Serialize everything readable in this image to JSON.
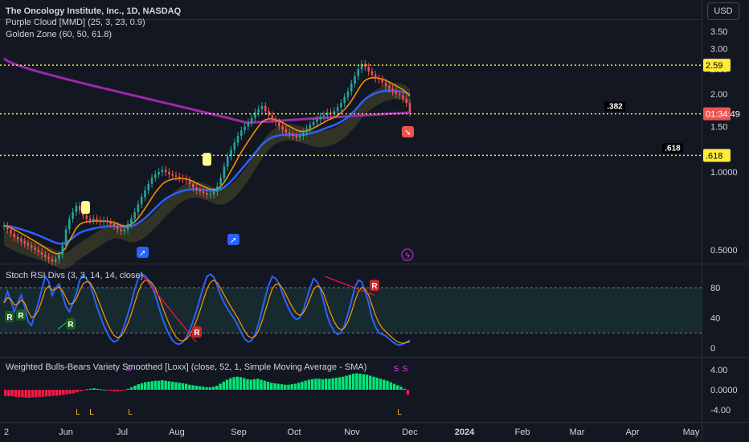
{
  "header": {
    "title": "The Oncology Institute, Inc., 1D, NASDAQ",
    "indicator_1": "Purple Cloud [MMD] (25, 3, 23, 0.9)",
    "indicator_2": "Golden Zone (60, 50, 61.8)",
    "currency_button": "USD"
  },
  "colors": {
    "background": "#131722",
    "up_candle": "#26a69a",
    "down_candle": "#ef5350",
    "golden_zone_line": "#ffeb3b",
    "long_ma": "#9c27b0",
    "blue_ma": "#2962ff",
    "orange_ma": "#ff9800",
    "cloud": "#4a4a2a",
    "stoch_k": "#2962ff",
    "stoch_d": "#ff9800",
    "bull": "#00e676",
    "bear": "#ff1744"
  },
  "chart_data": [
    {
      "type": "candlestick",
      "panel": "price",
      "scale": "log",
      "x_ticks": [
        "2",
        "Jun",
        "Jul",
        "Aug",
        "Sep",
        "Oct",
        "Nov",
        "Dec",
        "2024",
        "Feb",
        "Mar",
        "Apr",
        "May"
      ],
      "y_ticks": [
        "3.50",
        "3.00",
        "2.50",
        "2.00",
        "1.50",
        "1.0000",
        "0.5000"
      ],
      "levels": [
        {
          "label": "2.59",
          "value": 2.59
        },
        {
          "label": ".382",
          "value": 1.68
        },
        {
          "label": ".618",
          "value": 1.16
        }
      ],
      "current_price_countdown": "01:34:49",
      "close_approx": [
        0.62,
        0.6,
        0.58,
        0.56,
        0.55,
        0.54,
        0.53,
        0.52,
        0.51,
        0.5,
        0.49,
        0.48,
        0.47,
        0.46,
        0.45,
        0.46,
        0.48,
        0.52,
        0.6,
        0.66,
        0.7,
        0.74,
        0.71,
        0.68,
        0.66,
        0.65,
        0.66,
        0.65,
        0.64,
        0.65,
        0.64,
        0.63,
        0.62,
        0.6,
        0.59,
        0.6,
        0.63,
        0.66,
        0.7,
        0.75,
        0.8,
        0.85,
        0.9,
        0.95,
        0.98,
        1.0,
        1.02,
        1.0,
        0.98,
        0.97,
        0.96,
        0.95,
        0.94,
        0.93,
        0.9,
        0.87,
        0.85,
        0.84,
        0.83,
        0.82,
        0.82,
        0.84,
        0.88,
        0.95,
        1.05,
        1.15,
        1.22,
        1.3,
        1.38,
        1.45,
        1.5,
        1.55,
        1.62,
        1.7,
        1.75,
        1.8,
        1.72,
        1.66,
        1.6,
        1.56,
        1.5,
        1.46,
        1.42,
        1.4,
        1.38,
        1.36,
        1.38,
        1.42,
        1.47,
        1.52,
        1.56,
        1.6,
        1.64,
        1.66,
        1.7,
        1.68,
        1.72,
        1.78,
        1.85,
        1.95,
        2.05,
        2.2,
        2.35,
        2.5,
        2.62,
        2.55,
        2.45,
        2.38,
        2.3,
        2.28,
        2.22,
        2.15,
        2.1,
        2.05,
        2.0,
        1.98,
        1.92,
        1.85,
        1.7
      ],
      "series": [
        {
          "name": "Purple Cloud [MMD] (25, 3, 23, 0.9)"
        },
        {
          "name": "Golden Zone (60, 50, 61.8)"
        }
      ],
      "annotations": [
        "rocket",
        "rocket",
        "flash"
      ]
    },
    {
      "type": "line",
      "panel": "oscillator",
      "title": "Stoch RSI Divs (3, 3, 14, 14, close)",
      "y_ticks": [
        "80",
        "40",
        "0"
      ],
      "bands": [
        80,
        20
      ],
      "ylim": [
        0,
        100
      ],
      "signal_labels": [
        "R",
        "R",
        "R",
        "R",
        "R"
      ],
      "k_values": [
        60,
        75,
        62,
        48,
        60,
        70,
        55,
        35,
        30,
        45,
        60,
        78,
        95,
        88,
        70,
        80,
        85,
        70,
        55,
        48,
        60,
        72,
        90,
        96,
        92,
        85,
        70,
        55,
        42,
        30,
        20,
        12,
        8,
        10,
        18,
        30,
        45,
        60,
        78,
        92,
        98,
        96,
        90,
        82,
        70,
        55,
        40,
        28,
        18,
        10,
        6,
        5,
        8,
        14,
        24,
        36,
        50,
        66,
        82,
        95,
        98,
        94,
        82,
        70,
        60,
        52,
        45,
        38,
        30,
        20,
        12,
        8,
        10,
        18,
        32,
        50,
        68,
        84,
        95,
        92,
        85,
        72,
        60,
        50,
        42,
        38,
        40,
        50,
        65,
        80,
        92,
        88,
        78,
        60,
        42,
        30,
        22,
        18,
        20,
        30,
        45,
        62,
        80,
        90,
        88,
        75,
        60,
        40,
        28,
        20,
        18,
        16,
        12,
        8,
        5,
        4,
        5,
        8,
        10
      ]
    },
    {
      "type": "bar",
      "panel": "histogram",
      "title": "Weighted Bulls-Bears Variety Smoothed [Loxx] (close, 52, 1, Simple Moving Average - SMA)",
      "y_ticks": [
        "4.00",
        "0.0000",
        "-4.00"
      ],
      "ylim": [
        -6,
        6
      ],
      "signal_labels": [
        "S",
        "S",
        "S",
        "L",
        "L",
        "L",
        "L"
      ],
      "values": [
        -1.2,
        -1.3,
        -1.3,
        -1.4,
        -1.5,
        -1.5,
        -1.6,
        -1.6,
        -1.5,
        -1.5,
        -1.4,
        -1.4,
        -1.3,
        -1.3,
        -1.2,
        -1.2,
        -1.1,
        -1.0,
        -0.9,
        -0.8,
        -0.7,
        -0.5,
        -0.3,
        -0.1,
        0.1,
        0.2,
        0.3,
        0.2,
        0.1,
        0.0,
        -0.1,
        -0.2,
        -0.3,
        -0.3,
        -0.2,
        -0.1,
        0.2,
        0.5,
        0.8,
        1.1,
        1.3,
        1.5,
        1.6,
        1.7,
        1.8,
        1.8,
        1.9,
        1.8,
        1.7,
        1.6,
        1.5,
        1.4,
        1.3,
        1.2,
        1.0,
        0.9,
        0.8,
        0.7,
        0.6,
        0.5,
        0.5,
        0.6,
        0.8,
        1.2,
        1.6,
        2.0,
        2.3,
        2.5,
        2.6,
        2.5,
        2.3,
        2.1,
        2.0,
        2.1,
        2.2,
        2.0,
        1.8,
        1.6,
        1.4,
        1.3,
        1.2,
        1.1,
        1.0,
        1.0,
        1.1,
        1.2,
        1.4,
        1.6,
        1.8,
        2.0,
        2.1,
        2.2,
        2.2,
        2.1,
        2.2,
        2.2,
        2.3,
        2.4,
        2.5,
        2.6,
        2.8,
        3.0,
        3.2,
        3.3,
        3.2,
        3.1,
        3.0,
        2.8,
        2.6,
        2.4,
        2.2,
        2.0,
        1.8,
        1.5,
        1.2,
        0.9,
        0.6,
        0.2,
        -1.0
      ]
    }
  ]
}
